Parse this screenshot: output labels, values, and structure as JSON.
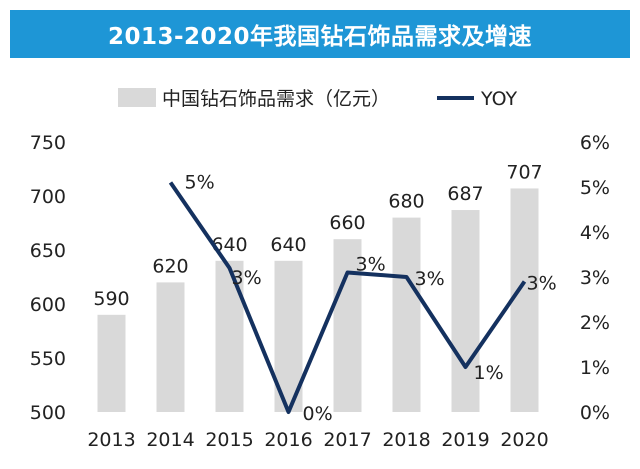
{
  "chart_data": {
    "type": "bar",
    "title": "2013-2020年我国钻石饰品需求及增速",
    "categories": [
      "2013",
      "2014",
      "2015",
      "2016",
      "2017",
      "2018",
      "2019",
      "2020"
    ],
    "series": [
      {
        "name": "中国钻石饰品需求（亿元）",
        "type": "bar",
        "axis": "left",
        "values": [
          590,
          620,
          640,
          640,
          660,
          680,
          687,
          707
        ],
        "labels": [
          "590",
          "620",
          "640",
          "640",
          "660",
          "680",
          "687",
          "707"
        ]
      },
      {
        "name": "YOY",
        "type": "line",
        "axis": "right",
        "values": [
          null,
          5.1,
          3.2,
          0.0,
          3.1,
          3.0,
          1.0,
          2.9
        ],
        "labels": [
          "",
          "5%",
          "3%",
          "0%",
          "3%",
          "3%",
          "1%",
          "3%"
        ]
      }
    ],
    "left_axis": {
      "min": 500,
      "max": 750,
      "ticks": [
        "500",
        "550",
        "600",
        "650",
        "700",
        "750"
      ]
    },
    "right_axis": {
      "min": 0,
      "max": 6,
      "ticks": [
        "0%",
        "1%",
        "2%",
        "3%",
        "4%",
        "5%",
        "6%"
      ]
    },
    "legend_position": "top-center",
    "grid": false,
    "colors": {
      "bar": "#d9d9d9",
      "line": "#14315f",
      "title_bg": "#1e96d6",
      "title_text": "#ffffff"
    }
  }
}
